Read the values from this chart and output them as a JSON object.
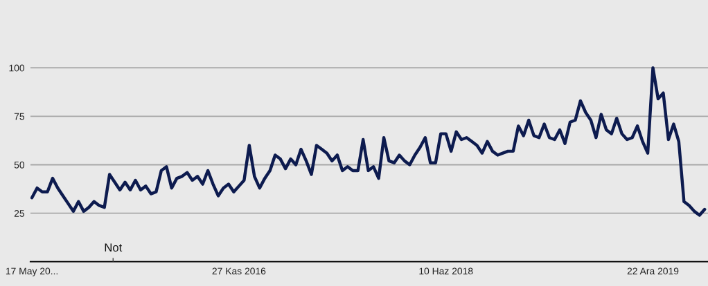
{
  "chart_data": {
    "type": "line",
    "x": [
      "2015-05-17",
      "2015-05-31",
      "2015-06-14",
      "2015-06-28",
      "2015-07-12",
      "2015-07-26",
      "2015-08-09",
      "2015-08-23",
      "2015-09-06",
      "2015-09-20",
      "2015-10-04",
      "2015-10-18",
      "2015-11-01",
      "2015-11-15",
      "2015-11-29",
      "2015-12-13",
      "2015-12-27",
      "2016-01-10",
      "2016-01-24",
      "2016-02-07",
      "2016-02-21",
      "2016-03-06",
      "2016-03-20",
      "2016-04-03",
      "2016-04-17",
      "2016-05-01",
      "2016-05-15",
      "2016-05-29",
      "2016-06-12",
      "2016-06-26",
      "2016-07-10",
      "2016-07-24",
      "2016-08-07",
      "2016-08-21",
      "2016-09-04",
      "2016-09-18",
      "2016-10-02",
      "2016-10-16",
      "2016-10-30",
      "2016-11-13",
      "2016-11-27",
      "2016-12-11",
      "2016-12-25",
      "2017-01-08",
      "2017-01-22",
      "2017-02-05",
      "2017-02-19",
      "2017-03-05",
      "2017-03-19",
      "2017-04-02",
      "2017-04-16",
      "2017-04-30",
      "2017-05-14",
      "2017-05-28",
      "2017-06-11",
      "2017-06-25",
      "2017-07-09",
      "2017-07-23",
      "2017-08-06",
      "2017-08-20",
      "2017-09-03",
      "2017-09-17",
      "2017-10-01",
      "2017-10-15",
      "2017-10-29",
      "2017-11-12",
      "2017-11-26",
      "2017-12-10",
      "2017-12-24",
      "2018-01-07",
      "2018-01-21",
      "2018-02-04",
      "2018-02-18",
      "2018-03-04",
      "2018-03-18",
      "2018-04-01",
      "2018-04-15",
      "2018-04-29",
      "2018-05-13",
      "2018-05-27",
      "2018-06-10",
      "2018-06-24",
      "2018-07-08",
      "2018-07-22",
      "2018-08-05",
      "2018-08-19",
      "2018-09-02",
      "2018-09-16",
      "2018-09-30",
      "2018-10-14",
      "2018-10-28",
      "2018-11-11",
      "2018-11-25",
      "2018-12-09",
      "2018-12-23",
      "2019-01-06",
      "2019-01-20",
      "2019-02-03",
      "2019-02-17",
      "2019-03-03",
      "2019-03-17",
      "2019-03-31",
      "2019-04-14",
      "2019-04-28",
      "2019-05-12",
      "2019-05-26",
      "2019-06-09",
      "2019-06-23",
      "2019-07-07",
      "2019-07-21",
      "2019-08-04",
      "2019-08-18",
      "2019-09-01",
      "2019-09-15",
      "2019-09-29",
      "2019-10-13",
      "2019-10-27",
      "2019-11-10",
      "2019-11-24",
      "2019-12-08",
      "2019-12-22",
      "2020-01-05",
      "2020-01-19",
      "2020-02-02",
      "2020-02-16",
      "2020-03-01",
      "2020-03-15",
      "2020-03-29",
      "2020-04-12",
      "2020-04-26",
      "2020-05-10"
    ],
    "series": [
      {
        "color": "#0d1b4f",
        "values": [
          33,
          38,
          36,
          36,
          43,
          38,
          34,
          30,
          26,
          31,
          26,
          28,
          31,
          29,
          28,
          45,
          41,
          37,
          41,
          37,
          42,
          37,
          39,
          35,
          36,
          47,
          49,
          38,
          43,
          44,
          46,
          42,
          44,
          40,
          47,
          40,
          34,
          38,
          40,
          36,
          39,
          42,
          60,
          44,
          38,
          43,
          47,
          55,
          53,
          48,
          53,
          50,
          58,
          52,
          45,
          60,
          58,
          56,
          52,
          55,
          47,
          49,
          47,
          47,
          63,
          47,
          49,
          43,
          64,
          52,
          51,
          55,
          52,
          50,
          55,
          59,
          64,
          51,
          51,
          66,
          66,
          57,
          67,
          63,
          64,
          62,
          60,
          56,
          62,
          57,
          55,
          56,
          57,
          57,
          70,
          65,
          73,
          65,
          64,
          71,
          64,
          63,
          68,
          61,
          72,
          73,
          83,
          77,
          73,
          64,
          76,
          68,
          66,
          74,
          66,
          63,
          64,
          70,
          62,
          56,
          100,
          84,
          87,
          63,
          71,
          62,
          31,
          29,
          26,
          24,
          27
        ]
      }
    ],
    "xlim": [
      "2015-05-13",
      "2020-05-19"
    ],
    "xticks": [
      {
        "value": "2015-05-17",
        "label": "17 May 20..."
      },
      {
        "value": "2016-11-27",
        "label": "27 Kas 2016"
      },
      {
        "value": "2018-06-10",
        "label": "10 Haz 2018"
      },
      {
        "value": "2019-12-22",
        "label": "22 Ara 2019"
      }
    ],
    "ylim": [
      0,
      135
    ],
    "yticks": [
      25,
      50,
      75,
      100
    ],
    "grid": "y",
    "line_style": "solid",
    "annotations": [
      "Not"
    ]
  }
}
